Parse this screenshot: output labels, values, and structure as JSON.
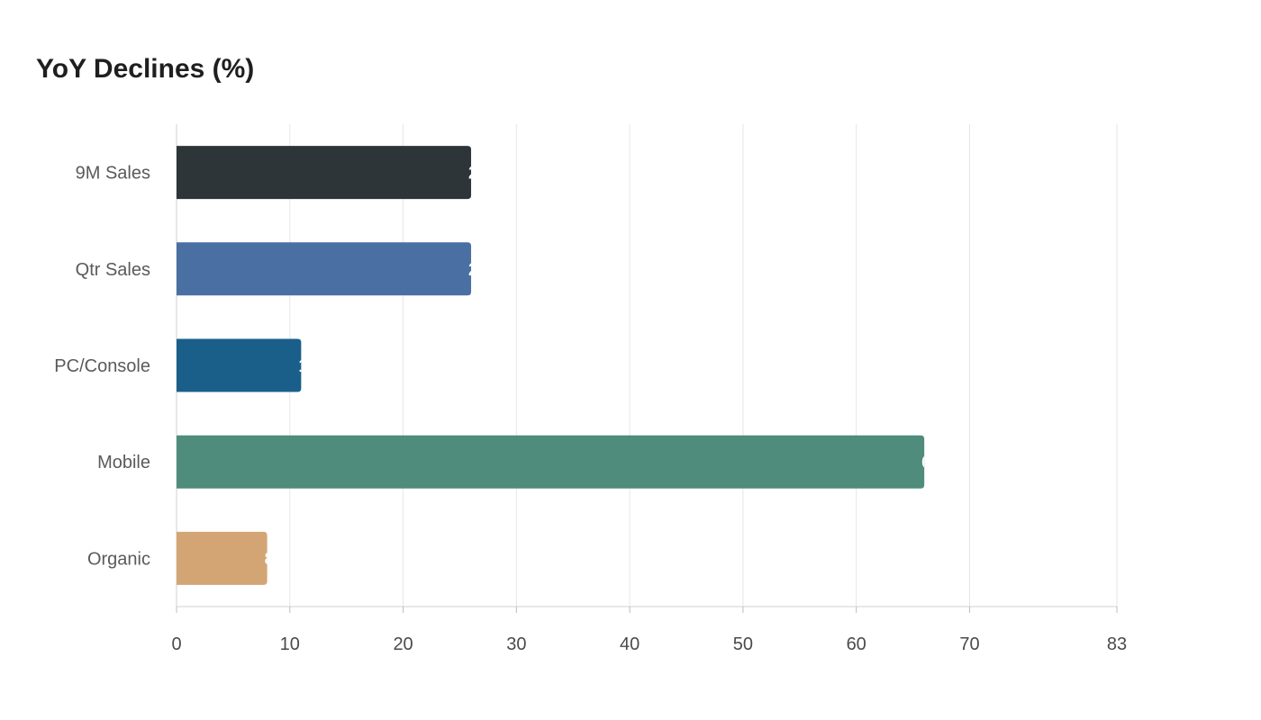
{
  "chart_data": {
    "type": "bar",
    "orientation": "horizontal",
    "title": "YoY Declines (%)",
    "xlabel": "",
    "ylabel": "",
    "categories": [
      "9M Sales",
      "Qtr Sales",
      "PC/Console",
      "Mobile",
      "Organic"
    ],
    "values": [
      26,
      26,
      11,
      66,
      8
    ],
    "colors": [
      "#2d3538",
      "#4a6fa3",
      "#1a5f8a",
      "#4f8c7c",
      "#d4a574"
    ],
    "xlim": [
      0,
      83
    ],
    "xticks": [
      0,
      10,
      20,
      30,
      40,
      50,
      60,
      70,
      83
    ],
    "grid": true,
    "legend": "none"
  }
}
